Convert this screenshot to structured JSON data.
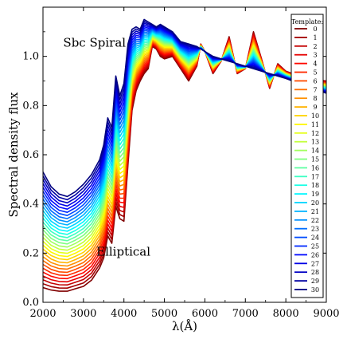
{
  "chart_data": {
    "type": "line",
    "xlabel": "λ(Å)",
    "ylabel": "Spectral density flux",
    "xlim": [
      2000,
      9000
    ],
    "ylim": [
      0.0,
      1.2
    ],
    "xticks": [
      "2000",
      "3000",
      "4000",
      "5000",
      "6000",
      "7000",
      "8000",
      "9000"
    ],
    "yticks": [
      "0.0",
      "0.2",
      "0.4",
      "0.6",
      "0.8",
      "1.0"
    ],
    "grid": false,
    "legend": {
      "title": "Template:",
      "placement": "right",
      "entries": [
        "0",
        "1",
        "2",
        "3",
        "4",
        "5",
        "6",
        "7",
        "8",
        "9",
        "10",
        "11",
        "12",
        "13",
        "14",
        "15",
        "16",
        "17",
        "18",
        "19",
        "20",
        "21",
        "22",
        "23",
        "24",
        "25",
        "26",
        "27",
        "28",
        "29",
        "30"
      ]
    },
    "annotations": [
      {
        "text": "Sbc Spiral",
        "x": 2500,
        "y": 1.04
      },
      {
        "text": "Elliptical",
        "x": 3320,
        "y": 0.19
      }
    ],
    "series_count": 31,
    "series_colormap": "jet_r",
    "endpoint_series": [
      {
        "template": 0,
        "x": [
          2000,
          2200,
          2400,
          2600,
          2800,
          3000,
          3200,
          3400,
          3500,
          3600,
          3700,
          3800,
          3900,
          4000,
          4100,
          4200,
          4300,
          4400,
          4500,
          4600,
          4700,
          4800,
          4900,
          5000,
          5200,
          5400,
          5600,
          5800,
          5900,
          6000,
          6200,
          6400,
          6600,
          6800,
          7000,
          7200,
          7400,
          7600,
          7800,
          8000,
          8500,
          9000
        ],
        "y": [
          0.06,
          0.05,
          0.045,
          0.045,
          0.055,
          0.065,
          0.09,
          0.14,
          0.18,
          0.27,
          0.24,
          0.39,
          0.34,
          0.33,
          0.56,
          0.78,
          0.86,
          0.9,
          0.93,
          0.95,
          1.04,
          1.03,
          1.0,
          0.99,
          1.0,
          0.95,
          0.9,
          0.96,
          1.05,
          1.02,
          0.93,
          0.98,
          1.08,
          0.93,
          0.95,
          1.1,
          0.99,
          0.87,
          0.97,
          0.94,
          0.91,
          0.9
        ]
      },
      {
        "template": 30,
        "x": [
          2000,
          2200,
          2400,
          2600,
          2800,
          3000,
          3200,
          3400,
          3500,
          3600,
          3700,
          3800,
          3900,
          4000,
          4100,
          4200,
          4300,
          4400,
          4500,
          4600,
          4700,
          4800,
          4900,
          5000,
          5200,
          5400,
          5600,
          5800,
          5900,
          6000,
          6200,
          6400,
          6600,
          6800,
          7000,
          7200,
          7400,
          7600,
          7800,
          8000,
          8500,
          9000
        ],
        "y": [
          0.53,
          0.47,
          0.44,
          0.43,
          0.45,
          0.48,
          0.52,
          0.58,
          0.64,
          0.75,
          0.71,
          0.92,
          0.84,
          0.89,
          1.05,
          1.11,
          1.12,
          1.11,
          1.15,
          1.14,
          1.13,
          1.12,
          1.13,
          1.12,
          1.1,
          1.06,
          1.05,
          1.04,
          1.03,
          1.02,
          1.0,
          0.99,
          0.98,
          0.97,
          0.96,
          0.95,
          0.94,
          0.93,
          0.92,
          0.91,
          0.88,
          0.85
        ]
      }
    ]
  }
}
